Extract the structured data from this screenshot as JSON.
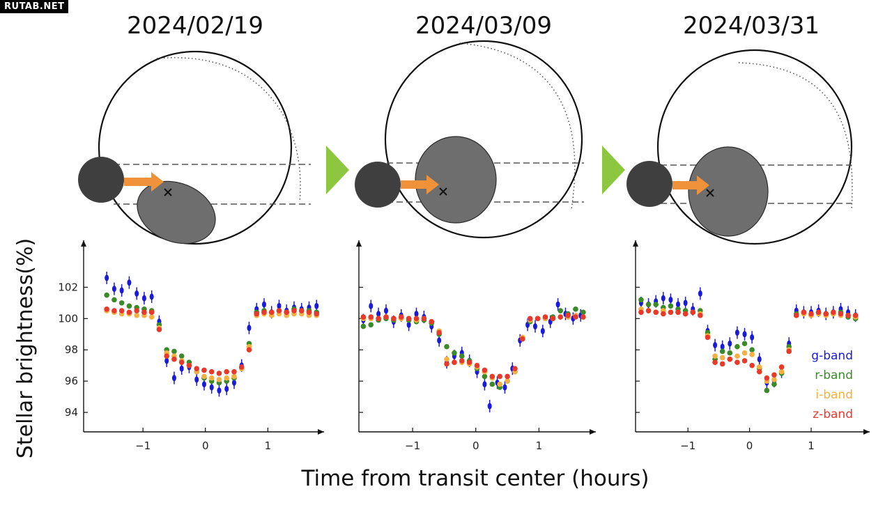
{
  "watermark": "RUTAB.NET",
  "colors": {
    "g": "#1a1adb",
    "r": "#3a8a2a",
    "i": "#f5b041",
    "z": "#e8392b",
    "arrow": "#f0923a",
    "triangle": "#8dc63f",
    "planet": "#3f3f3f",
    "spot": "#6e6e6e"
  },
  "ylabel": "Stellar brightness(%)",
  "xlabel": "Time from transit center (hours)",
  "legend": [
    {
      "label": "g-band",
      "key": "g"
    },
    {
      "label": "r-band",
      "key": "r"
    },
    {
      "label": "i-band",
      "key": "i"
    },
    {
      "label": "z-band",
      "key": "z"
    }
  ],
  "chart_data": [
    {
      "type": "scatter",
      "title": "2024/02/19",
      "xlim": [
        -1.95,
        1.9
      ],
      "ylim": [
        93.2,
        103.8
      ],
      "xticks": [
        -1,
        0,
        1
      ],
      "yticks": [
        94,
        96,
        98,
        100,
        102
      ],
      "xticklabels": [
        "−1",
        "0",
        "1"
      ],
      "yticklabels": [
        "94",
        "96",
        "98",
        "100",
        "102"
      ],
      "series": [
        {
          "name": "g-band",
          "key": "g",
          "x": [
            -1.58,
            -1.46,
            -1.34,
            -1.22,
            -1.1,
            -0.98,
            -0.86,
            -0.74,
            -0.62,
            -0.5,
            -0.38,
            -0.26,
            -0.14,
            -0.02,
            0.1,
            0.22,
            0.34,
            0.46,
            0.58,
            0.7,
            0.82,
            0.94,
            1.06,
            1.18,
            1.3,
            1.42,
            1.54,
            1.66,
            1.78
          ],
          "y": [
            102.6,
            101.9,
            101.8,
            102.3,
            101.6,
            101.3,
            101.4,
            99.8,
            97.3,
            96.2,
            96.8,
            96.9,
            96.1,
            95.8,
            95.6,
            95.4,
            95.5,
            95.9,
            97.0,
            99.4,
            100.6,
            100.9,
            100.4,
            100.8,
            100.5,
            100.7,
            100.6,
            100.7,
            100.8
          ]
        },
        {
          "name": "r-band",
          "key": "r",
          "x": [
            -1.58,
            -1.46,
            -1.34,
            -1.22,
            -1.1,
            -0.98,
            -0.86,
            -0.74,
            -0.62,
            -0.5,
            -0.38,
            -0.26,
            -0.14,
            -0.02,
            0.1,
            0.22,
            0.34,
            0.46,
            0.58,
            0.7,
            0.82,
            0.94,
            1.06,
            1.18,
            1.3,
            1.42,
            1.54,
            1.66,
            1.78
          ],
          "y": [
            101.5,
            101.2,
            101.0,
            100.8,
            100.7,
            100.6,
            100.5,
            99.6,
            98.0,
            97.9,
            97.6,
            97.2,
            96.6,
            96.2,
            96.0,
            95.9,
            96.0,
            96.2,
            96.8,
            98.4,
            100.4,
            100.5,
            100.4,
            100.5,
            100.4,
            100.6,
            100.5,
            100.5,
            100.4
          ]
        },
        {
          "name": "i-band",
          "key": "i",
          "x": [
            -1.58,
            -1.46,
            -1.34,
            -1.22,
            -1.1,
            -0.98,
            -0.86,
            -0.74,
            -0.62,
            -0.5,
            -0.38,
            -0.26,
            -0.14,
            -0.02,
            0.1,
            0.22,
            0.34,
            0.46,
            0.58,
            0.7,
            0.82,
            0.94,
            1.06,
            1.18,
            1.3,
            1.42,
            1.54,
            1.66,
            1.78
          ],
          "y": [
            100.5,
            100.4,
            100.3,
            100.3,
            100.2,
            100.2,
            100.1,
            99.4,
            97.8,
            97.6,
            97.3,
            97.0,
            96.6,
            96.3,
            96.2,
            96.1,
            96.2,
            96.3,
            96.8,
            98.2,
            100.2,
            100.3,
            100.2,
            100.3,
            100.2,
            100.3,
            100.3,
            100.2,
            100.2
          ]
        },
        {
          "name": "z-band",
          "key": "z",
          "x": [
            -1.58,
            -1.46,
            -1.34,
            -1.22,
            -1.1,
            -0.98,
            -0.86,
            -0.74,
            -0.62,
            -0.5,
            -0.38,
            -0.26,
            -0.14,
            -0.02,
            0.1,
            0.22,
            0.34,
            0.46,
            0.58,
            0.7,
            0.82,
            0.94,
            1.06,
            1.18,
            1.3,
            1.42,
            1.54,
            1.66,
            1.78
          ],
          "y": [
            100.6,
            100.5,
            100.5,
            100.4,
            100.5,
            100.4,
            100.4,
            99.3,
            97.6,
            97.4,
            97.2,
            97.0,
            96.8,
            96.7,
            96.6,
            96.5,
            96.6,
            96.6,
            96.9,
            98.0,
            100.3,
            100.4,
            100.4,
            100.5,
            100.4,
            100.5,
            100.5,
            100.4,
            100.3
          ]
        }
      ]
    },
    {
      "type": "scatter",
      "title": "2024/03/09",
      "xlim": [
        -1.85,
        1.9
      ],
      "ylim": [
        93.2,
        103.8
      ],
      "xticks": [
        -1,
        0,
        1
      ],
      "yticks": [
        94,
        96,
        98,
        100,
        102
      ],
      "xticklabels": [
        "−1",
        "0",
        "1"
      ],
      "yticklabels": [
        "",
        "",
        "",
        "",
        ""
      ],
      "series": [
        {
          "name": "g-band",
          "key": "g",
          "x": [
            -1.78,
            -1.66,
            -1.54,
            -1.42,
            -1.3,
            -1.18,
            -1.06,
            -0.94,
            -0.82,
            -0.7,
            -0.58,
            -0.46,
            -0.34,
            -0.22,
            -0.1,
            0.02,
            0.14,
            0.22,
            0.34,
            0.46,
            0.58,
            0.7,
            0.82,
            0.94,
            1.06,
            1.18,
            1.3,
            1.42,
            1.54,
            1.66
          ],
          "y": [
            99.9,
            100.8,
            100.3,
            100.5,
            99.8,
            100.2,
            99.6,
            100.3,
            100.1,
            99.5,
            98.6,
            97.2,
            97.6,
            97.8,
            97.3,
            96.6,
            95.8,
            94.4,
            95.9,
            95.6,
            96.8,
            98.6,
            99.6,
            99.5,
            99.2,
            99.8,
            100.9,
            100.3,
            100.0,
            100.2
          ]
        },
        {
          "name": "r-band",
          "key": "r",
          "x": [
            -1.78,
            -1.66,
            -1.54,
            -1.42,
            -1.3,
            -1.18,
            -1.06,
            -0.94,
            -0.82,
            -0.7,
            -0.58,
            -0.46,
            -0.34,
            -0.22,
            -0.1,
            0.02,
            0.14,
            0.26,
            0.38,
            0.5,
            0.62,
            0.74,
            0.86,
            0.98,
            1.1,
            1.22,
            1.34,
            1.46,
            1.58,
            1.7
          ],
          "y": [
            99.5,
            99.6,
            99.9,
            100.0,
            99.9,
            100.1,
            99.9,
            99.8,
            99.9,
            99.7,
            99.0,
            98.2,
            97.8,
            97.6,
            97.3,
            96.8,
            96.3,
            95.8,
            95.6,
            96.0,
            96.6,
            98.7,
            99.8,
            100.0,
            100.0,
            100.1,
            100.5,
            100.3,
            100.6,
            100.4
          ]
        },
        {
          "name": "i-band",
          "key": "i",
          "x": [
            -1.78,
            -1.66,
            -1.54,
            -1.42,
            -1.3,
            -1.18,
            -1.06,
            -0.94,
            -0.82,
            -0.7,
            -0.58,
            -0.46,
            -0.34,
            -0.22,
            -0.1,
            0.02,
            0.14,
            0.26,
            0.38,
            0.5,
            0.62,
            0.74,
            0.86,
            0.98,
            1.1,
            1.22,
            1.34,
            1.46,
            1.58,
            1.7
          ],
          "y": [
            100.0,
            100.0,
            100.0,
            100.1,
            100.0,
            100.0,
            100.0,
            99.9,
            100.0,
            99.8,
            99.2,
            97.4,
            97.2,
            97.2,
            97.1,
            96.9,
            96.6,
            96.2,
            95.8,
            96.0,
            96.6,
            98.8,
            99.9,
            100.0,
            100.0,
            100.0,
            100.1,
            100.1,
            100.2,
            100.1
          ]
        },
        {
          "name": "z-band",
          "key": "z",
          "x": [
            -1.78,
            -1.66,
            -1.54,
            -1.42,
            -1.3,
            -1.18,
            -1.06,
            -0.94,
            -0.82,
            -0.7,
            -0.58,
            -0.46,
            -0.34,
            -0.22,
            -0.1,
            0.02,
            0.14,
            0.26,
            0.38,
            0.5,
            0.62,
            0.74,
            0.86,
            0.98,
            1.1,
            1.22,
            1.34,
            1.46,
            1.58,
            1.7
          ],
          "y": [
            100.1,
            100.1,
            100.0,
            100.1,
            100.0,
            100.1,
            100.0,
            100.0,
            100.0,
            99.8,
            99.1,
            97.1,
            97.2,
            97.3,
            97.2,
            97.0,
            96.7,
            96.3,
            96.3,
            96.3,
            96.8,
            98.7,
            100.0,
            100.0,
            100.1,
            100.0,
            100.1,
            100.2,
            100.1,
            100.1
          ]
        }
      ]
    },
    {
      "type": "scatter",
      "title": "2024/03/31",
      "xlim": [
        -1.85,
        1.95
      ],
      "ylim": [
        93.2,
        103.8
      ],
      "xticks": [
        -1,
        0,
        1
      ],
      "yticks": [
        94,
        96,
        98,
        100,
        102
      ],
      "xticklabels": [
        "−1",
        "0",
        "1"
      ],
      "yticklabels": [
        "",
        "",
        "",
        "",
        ""
      ],
      "series": [
        {
          "name": "g-band",
          "key": "g",
          "x": [
            -1.76,
            -1.64,
            -1.52,
            -1.4,
            -1.28,
            -1.16,
            -1.04,
            -0.92,
            -0.8,
            -0.68,
            -0.56,
            -0.44,
            -0.32,
            -0.2,
            -0.08,
            0.04,
            0.16,
            0.28,
            0.4,
            0.52,
            0.64,
            0.76,
            0.88,
            1.0,
            1.12,
            1.24,
            1.36,
            1.48,
            1.6,
            1.72
          ],
          "y": [
            101.0,
            100.9,
            101.1,
            101.3,
            101.2,
            100.9,
            101.0,
            100.6,
            101.6,
            99.2,
            98.3,
            98.2,
            98.4,
            99.1,
            99.0,
            98.8,
            97.4,
            95.9,
            96.0,
            96.6,
            98.4,
            100.5,
            100.4,
            100.4,
            100.5,
            100.3,
            100.4,
            100.6,
            100.4,
            100.2
          ]
        },
        {
          "name": "r-band",
          "key": "r",
          "x": [
            -1.76,
            -1.64,
            -1.52,
            -1.4,
            -1.28,
            -1.16,
            -1.04,
            -0.92,
            -0.8,
            -0.68,
            -0.56,
            -0.44,
            -0.32,
            -0.2,
            -0.08,
            0.04,
            0.16,
            0.28,
            0.4,
            0.52,
            0.64,
            0.76,
            0.88,
            1.0,
            1.12,
            1.24,
            1.36,
            1.48,
            1.6,
            1.72
          ],
          "y": [
            101.2,
            100.9,
            100.9,
            100.7,
            100.8,
            100.6,
            100.5,
            100.4,
            100.5,
            99.1,
            97.4,
            97.9,
            97.8,
            98.2,
            98.4,
            98.0,
            96.8,
            95.4,
            95.8,
            96.5,
            98.2,
            100.3,
            100.4,
            100.2,
            100.4,
            100.3,
            100.3,
            100.4,
            100.1,
            100.0
          ]
        },
        {
          "name": "i-band",
          "key": "i",
          "x": [
            -1.76,
            -1.64,
            -1.52,
            -1.4,
            -1.28,
            -1.16,
            -1.04,
            -0.92,
            -0.8,
            -0.68,
            -0.56,
            -0.44,
            -0.32,
            -0.2,
            -0.08,
            0.04,
            0.16,
            0.28,
            0.4,
            0.52,
            0.64,
            0.76,
            0.88,
            1.0,
            1.12,
            1.24,
            1.36,
            1.48,
            1.6,
            1.72
          ],
          "y": [
            100.6,
            100.5,
            100.4,
            100.5,
            100.4,
            100.4,
            100.3,
            100.4,
            100.3,
            98.9,
            97.6,
            97.5,
            97.4,
            97.6,
            97.8,
            97.7,
            96.9,
            96.0,
            96.1,
            96.6,
            98.0,
            100.2,
            100.3,
            100.2,
            100.3,
            100.2,
            100.3,
            100.2,
            100.2,
            100.1
          ]
        },
        {
          "name": "z-band",
          "key": "z",
          "x": [
            -1.76,
            -1.64,
            -1.52,
            -1.4,
            -1.28,
            -1.16,
            -1.04,
            -0.92,
            -0.8,
            -0.68,
            -0.56,
            -0.44,
            -0.32,
            -0.2,
            -0.08,
            0.04,
            0.16,
            0.28,
            0.4,
            0.52,
            0.64,
            0.76,
            0.88,
            1.0,
            1.12,
            1.24,
            1.36,
            1.48,
            1.6,
            1.72
          ],
          "y": [
            100.4,
            100.5,
            100.4,
            100.3,
            100.4,
            100.4,
            100.3,
            100.4,
            100.2,
            98.8,
            97.2,
            97.1,
            97.4,
            97.2,
            97.3,
            97.0,
            96.6,
            96.2,
            96.4,
            96.9,
            97.9,
            100.2,
            100.4,
            100.3,
            100.4,
            100.3,
            100.4,
            100.3,
            100.2,
            100.2
          ]
        }
      ]
    }
  ]
}
